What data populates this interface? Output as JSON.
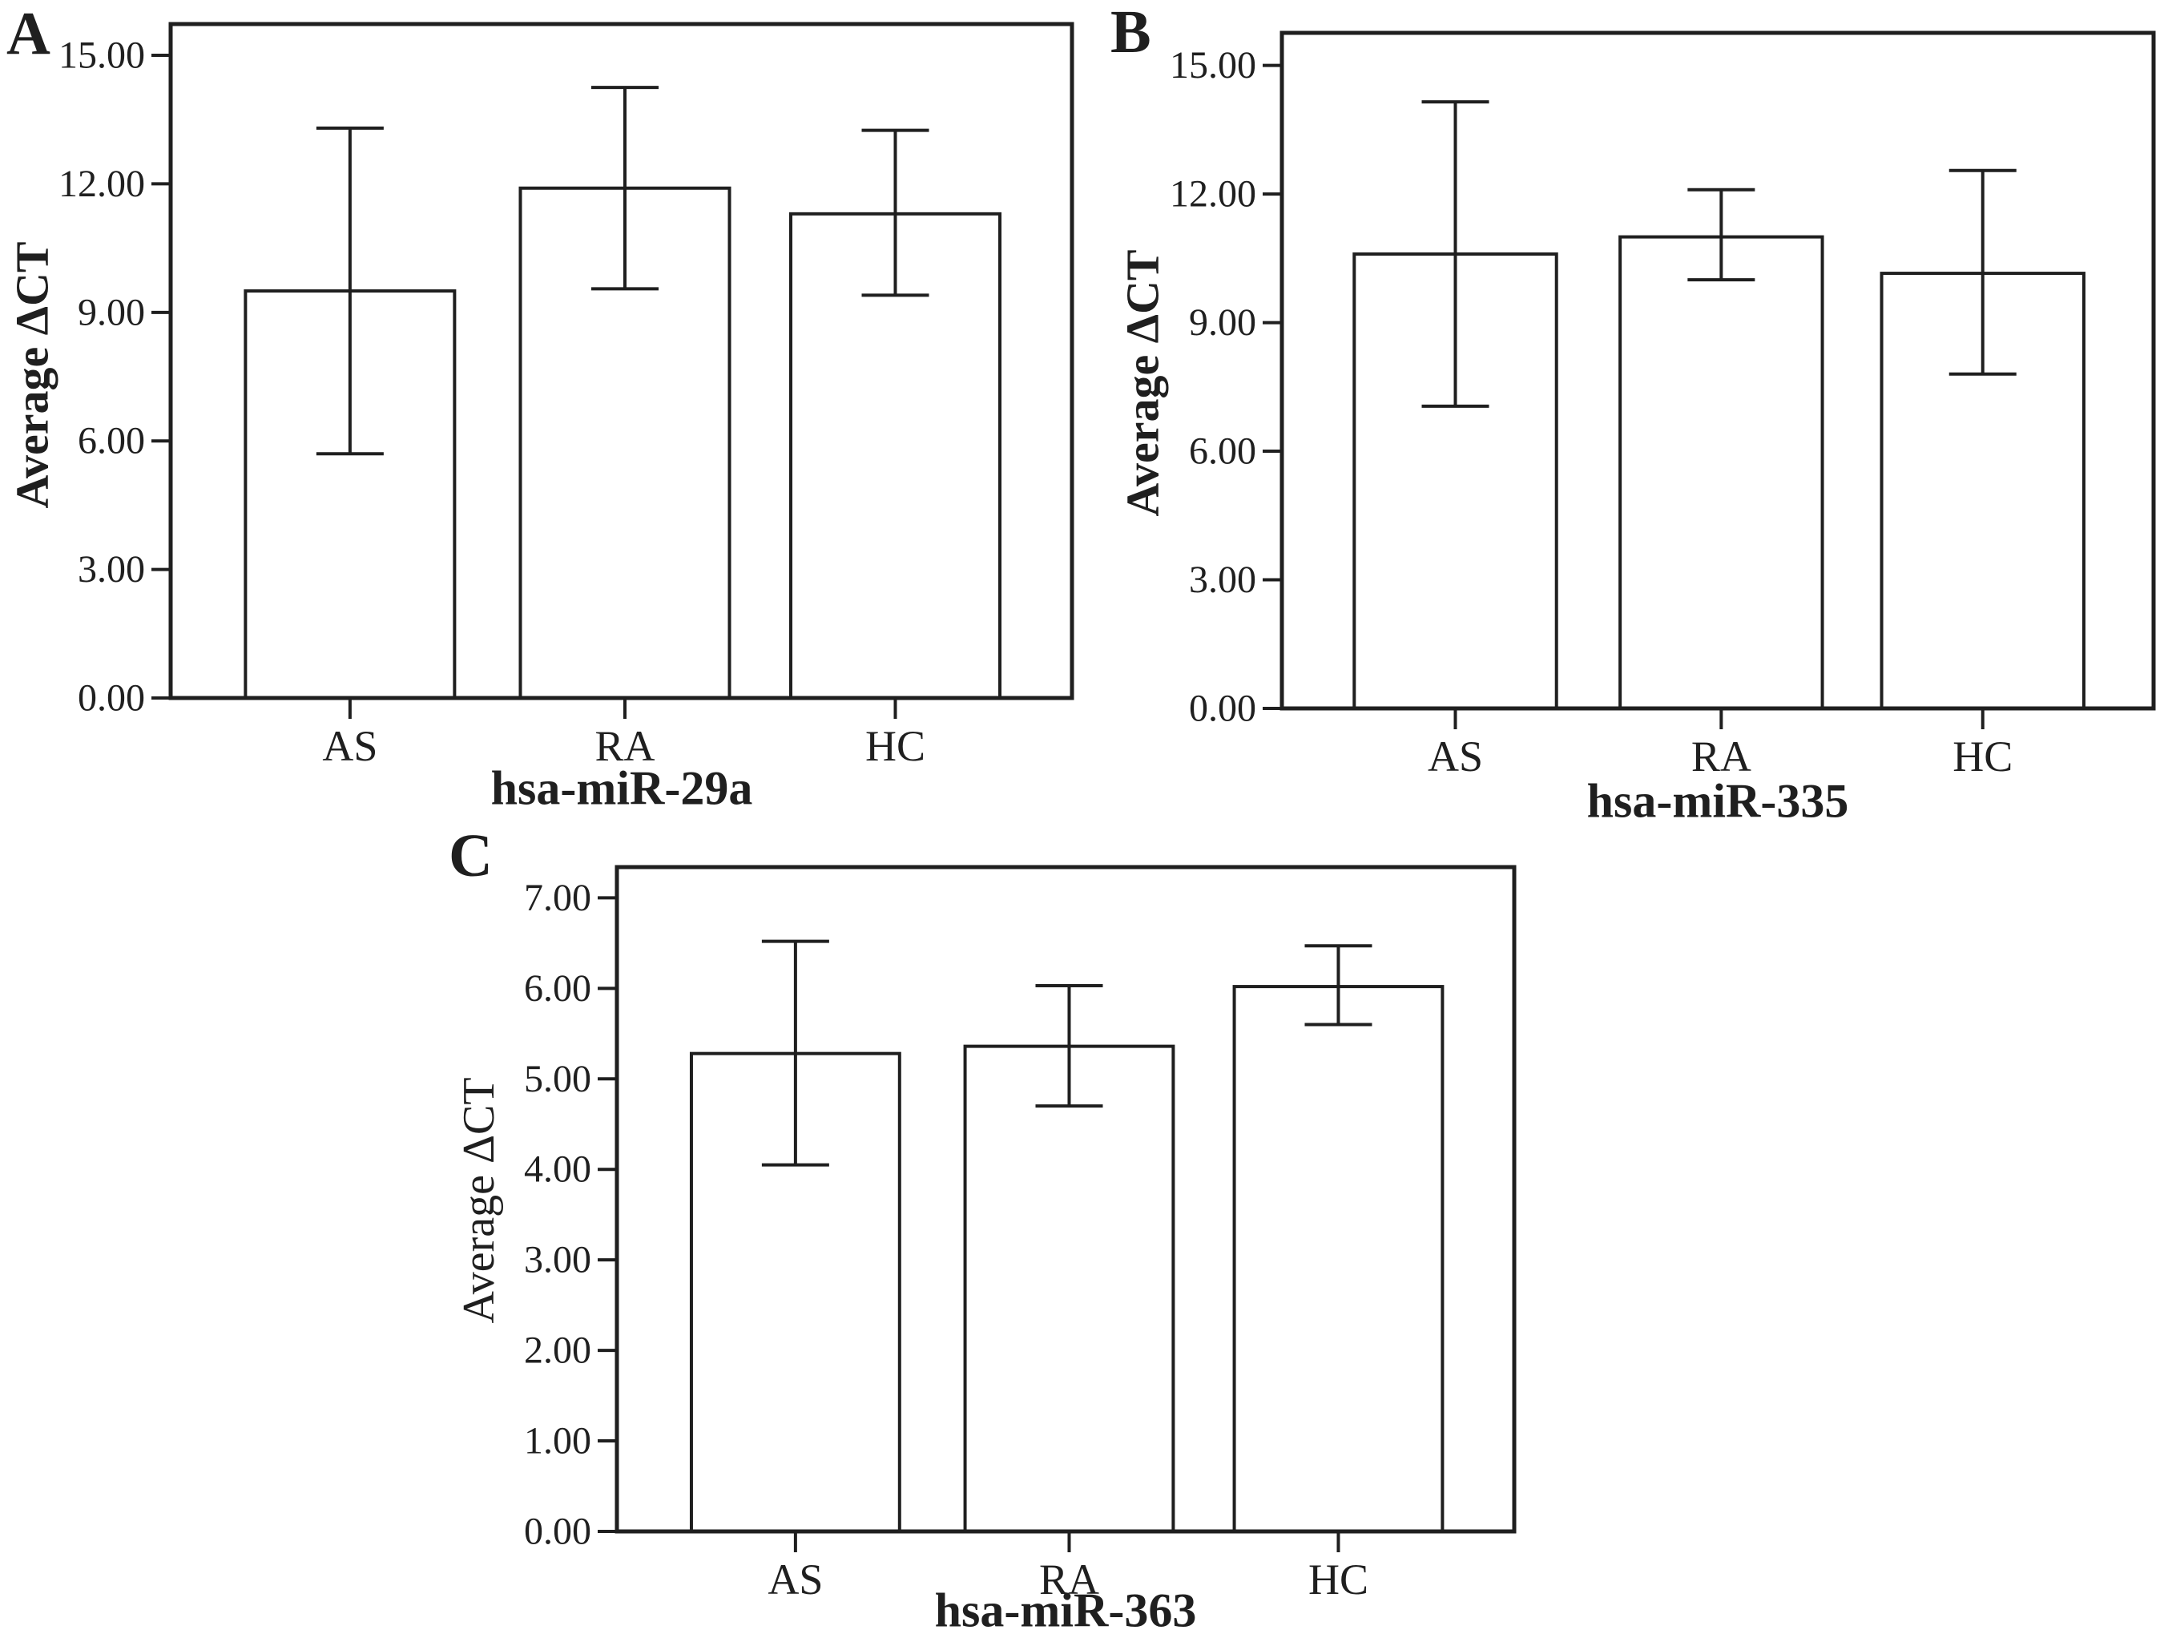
{
  "figure": {
    "background": "#ffffff",
    "ink_color": "#1f1f1f",
    "bar_fill": "#ffffff"
  },
  "chart_data": [
    {
      "type": "bar",
      "panel_label": "A",
      "title": "hsa-miR-29a",
      "ylabel": "Average ΔCT",
      "categories": [
        "AS",
        "RA",
        "HC"
      ],
      "values": [
        9.5,
        11.9,
        11.3
      ],
      "error_low": [
        5.7,
        9.55,
        9.4
      ],
      "error_high": [
        13.3,
        14.25,
        13.25
      ],
      "yticks": [
        0,
        3,
        6,
        9,
        12,
        15
      ],
      "ytick_labels": [
        "0.00",
        "3.00",
        "6.00",
        "9.00",
        "12.00",
        "15.00"
      ],
      "ylim": [
        0,
        15.73
      ],
      "grid": false,
      "legend": "none"
    },
    {
      "type": "bar",
      "panel_label": "B",
      "title": "hsa-miR-335",
      "ylabel": "Average ΔCT",
      "categories": [
        "AS",
        "RA",
        "HC"
      ],
      "values": [
        10.6,
        11.0,
        10.15
      ],
      "error_low": [
        7.05,
        10.0,
        7.8
      ],
      "error_high": [
        14.15,
        12.1,
        12.55
      ],
      "yticks": [
        0,
        3,
        6,
        9,
        12,
        15
      ],
      "ytick_labels": [
        "0.00",
        "3.00",
        "6.00",
        "9.00",
        "12.00",
        "15.00"
      ],
      "ylim": [
        0,
        15.76
      ],
      "grid": false,
      "legend": "none"
    },
    {
      "type": "bar",
      "panel_label": "C",
      "title": "hsa-miR-363",
      "ylabel": "Average ΔCT",
      "categories": [
        "AS",
        "RA",
        "HC"
      ],
      "values": [
        5.28,
        5.36,
        6.02
      ],
      "error_low": [
        4.05,
        4.7,
        5.6
      ],
      "error_high": [
        6.52,
        6.03,
        6.47
      ],
      "yticks": [
        0,
        1,
        2,
        3,
        4,
        5,
        6,
        7
      ],
      "ytick_labels": [
        "0.00",
        "1.00",
        "2.00",
        "3.00",
        "4.00",
        "5.00",
        "6.00",
        "7.00"
      ],
      "ylim": [
        0,
        7.34
      ],
      "grid": false,
      "legend": "none"
    }
  ]
}
